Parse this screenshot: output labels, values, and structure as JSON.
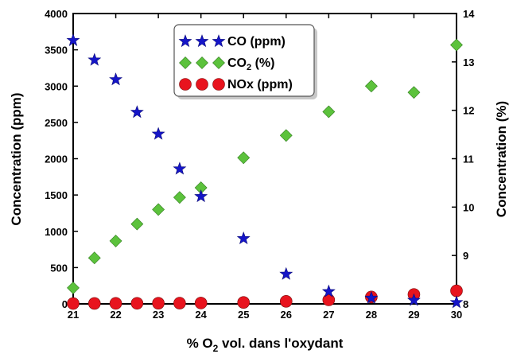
{
  "chart_data": {
    "type": "scatter",
    "x": [
      21,
      21.5,
      22,
      22.5,
      23,
      23.5,
      24,
      25,
      26,
      27,
      28,
      29,
      30
    ],
    "xlabel": {
      "prefix": "% O",
      "sub": "2",
      "suffix": " vol. dans l'oxydant"
    },
    "ylabel_left": "Concentration (ppm)",
    "ylabel_right": "Concentration (%)",
    "xlim": [
      21,
      30
    ],
    "ylim_left": [
      0,
      4000
    ],
    "ylim_right": [
      8,
      14
    ],
    "xticks": [
      "21",
      "22",
      "23",
      "24",
      "25",
      "26",
      "27",
      "28",
      "29",
      "30"
    ],
    "yticks_left": [
      "0",
      "500",
      "1000",
      "1500",
      "2000",
      "2500",
      "3000",
      "3500",
      "4000"
    ],
    "yticks_right": [
      "8",
      "9",
      "10",
      "11",
      "12",
      "13",
      "14"
    ],
    "legend_position": "top-center",
    "series": [
      {
        "key": "co",
        "name": "CO (ppm)",
        "axis": "left",
        "marker": "star",
        "color": "#1515c8",
        "points": [
          [
            21,
            3630
          ],
          [
            21.5,
            3360
          ],
          [
            22,
            3090
          ],
          [
            22.5,
            2640
          ],
          [
            23,
            2340
          ],
          [
            23.5,
            1860
          ],
          [
            24,
            1480
          ],
          [
            25,
            900
          ],
          [
            26,
            410
          ],
          [
            27,
            170
          ],
          [
            28,
            80
          ],
          [
            29,
            50
          ],
          [
            30,
            20
          ]
        ]
      },
      {
        "key": "co2",
        "name": {
          "prefix": "CO",
          "sub": "2",
          "suffix": " (%)"
        },
        "axis": "right",
        "marker": "diamond",
        "color": "#5cc23c",
        "points": [
          [
            21,
            8.33
          ],
          [
            21.5,
            8.95
          ],
          [
            22,
            9.3
          ],
          [
            22.5,
            9.65
          ],
          [
            23,
            9.95
          ],
          [
            23.5,
            10.2
          ],
          [
            24,
            10.4
          ],
          [
            25,
            11.02
          ],
          [
            26,
            11.48
          ],
          [
            27,
            11.97
          ],
          [
            28,
            12.5
          ],
          [
            29,
            12.37
          ],
          [
            30,
            13.35
          ]
        ]
      },
      {
        "key": "nox",
        "name": "NOx (ppm)",
        "axis": "left",
        "marker": "circle",
        "color": "#e8141e",
        "points": [
          [
            21,
            5
          ],
          [
            21.5,
            6
          ],
          [
            22,
            7
          ],
          [
            22.5,
            8
          ],
          [
            23,
            9
          ],
          [
            23.5,
            10
          ],
          [
            24,
            12
          ],
          [
            25,
            20
          ],
          [
            26,
            35
          ],
          [
            27,
            55
          ],
          [
            28,
            95
          ],
          [
            29,
            130
          ],
          [
            30,
            180
          ]
        ]
      }
    ]
  }
}
